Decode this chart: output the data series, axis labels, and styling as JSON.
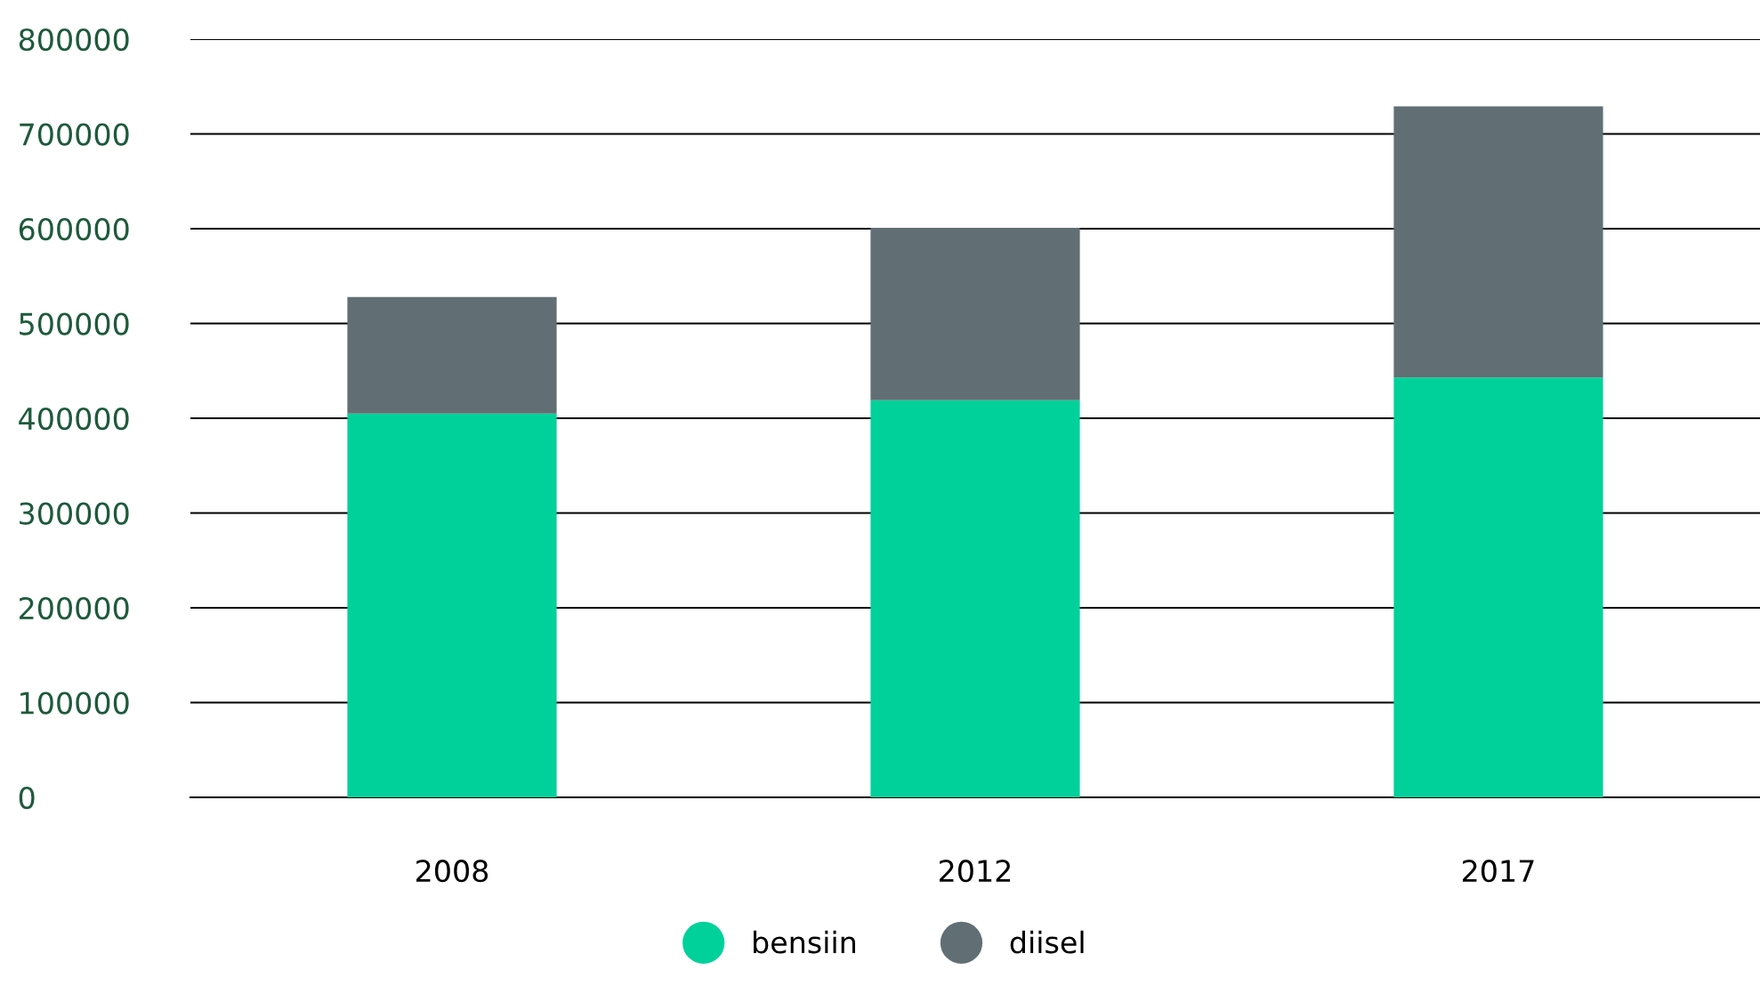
{
  "chart_data": {
    "type": "bar",
    "stacked": true,
    "categories": [
      "2008",
      "2012",
      "2017"
    ],
    "series": [
      {
        "name": "bensiin",
        "color": "#00d19a",
        "values": [
          405000,
          419000,
          443000
        ]
      },
      {
        "name": "diisel",
        "color": "#616f75",
        "values": [
          123000,
          182000,
          286000
        ]
      }
    ],
    "ylim": [
      0,
      800000
    ],
    "yticks": [
      0,
      100000,
      200000,
      300000,
      400000,
      500000,
      600000,
      700000,
      800000
    ],
    "grid": "y",
    "legend": "bottom"
  }
}
